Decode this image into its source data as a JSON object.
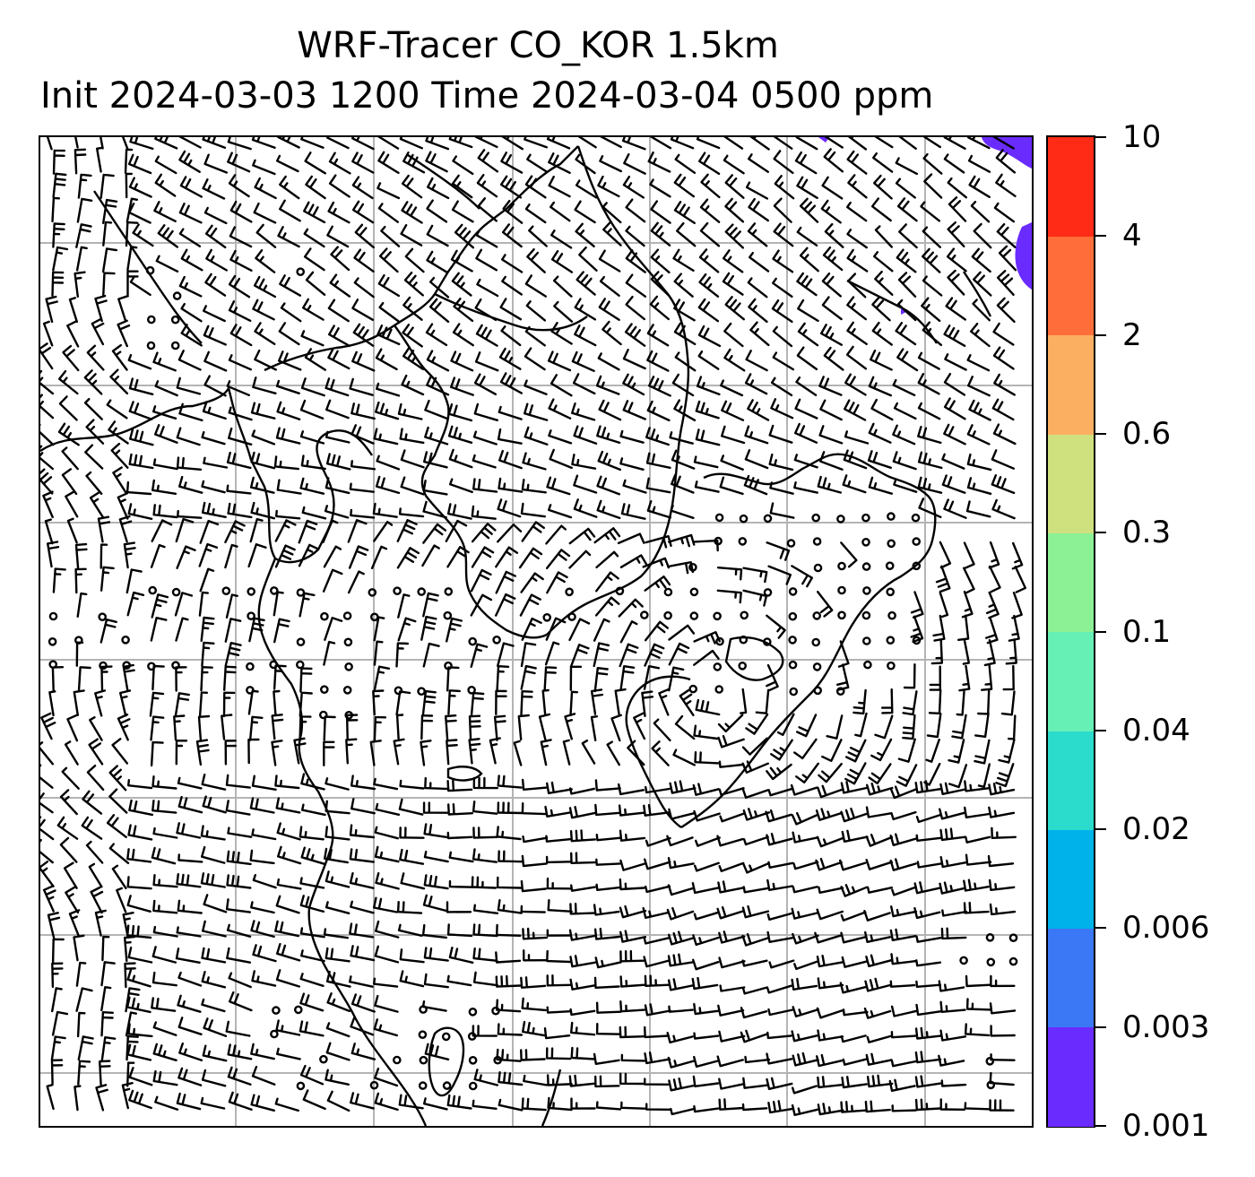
{
  "title": {
    "line1": "WRF-Tracer CO_KOR 1.5km",
    "line2": "Init 2024-03-03 1200 Time 2024-03-04 0500 ppm"
  },
  "colorbar": {
    "levels": [
      "0.001",
      "0.003",
      "0.006",
      "0.02",
      "0.04",
      "0.1",
      "0.3",
      "0.6",
      "2",
      "4",
      "10"
    ],
    "colors": [
      "#6a2bff",
      "#3a78f5",
      "#00b2ea",
      "#2bdccc",
      "#66f0b6",
      "#8cf095",
      "#cfe07e",
      "#fbb061",
      "#ff6e3a",
      "#ff2b17"
    ]
  },
  "map": {
    "gridlines": "on",
    "coastline_color": "#000000",
    "tracer_patch_color": "#6a2bff",
    "symbols": [
      "wind-barbs",
      "calm-circles"
    ]
  }
}
